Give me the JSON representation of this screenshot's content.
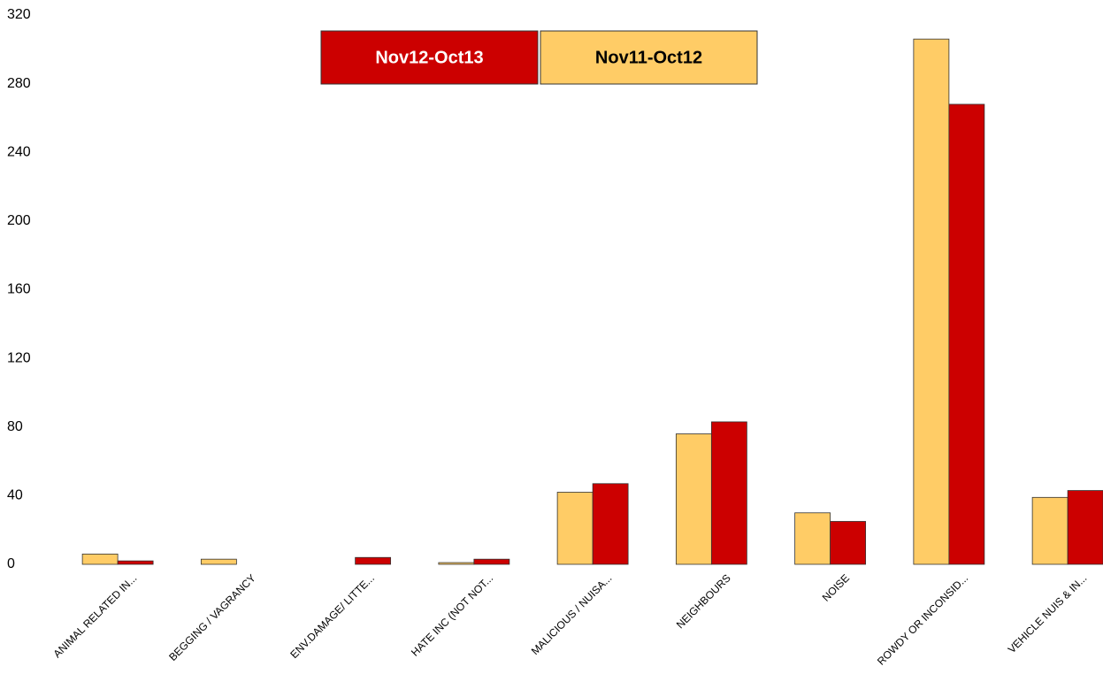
{
  "chart_data": {
    "type": "bar",
    "categories": [
      "ANIMAL RELATED IN...",
      "BEGGING / VAGRANCY",
      "ENV.DAMAGE/ LITTE...",
      "HATE INC (NOT NOT...",
      "MALICIOUS / NUISA...",
      "NEIGHBOURS",
      "NOISE",
      "ROWDY OR INCONSID...",
      "VEHICLE NUIS & IN..."
    ],
    "series": [
      {
        "name": "Nov11-Oct12",
        "color": "#ffcc66",
        "values": [
          6,
          3,
          0,
          1,
          42,
          76,
          30,
          306,
          39
        ]
      },
      {
        "name": "Nov12-Oct13",
        "color": "#cc0000",
        "values": [
          2,
          0,
          4,
          3,
          47,
          83,
          25,
          268,
          43
        ]
      }
    ],
    "ylim": [
      0,
      320
    ],
    "yticks": [
      0,
      40,
      80,
      120,
      160,
      200,
      240,
      280,
      320
    ],
    "grid": false
  }
}
